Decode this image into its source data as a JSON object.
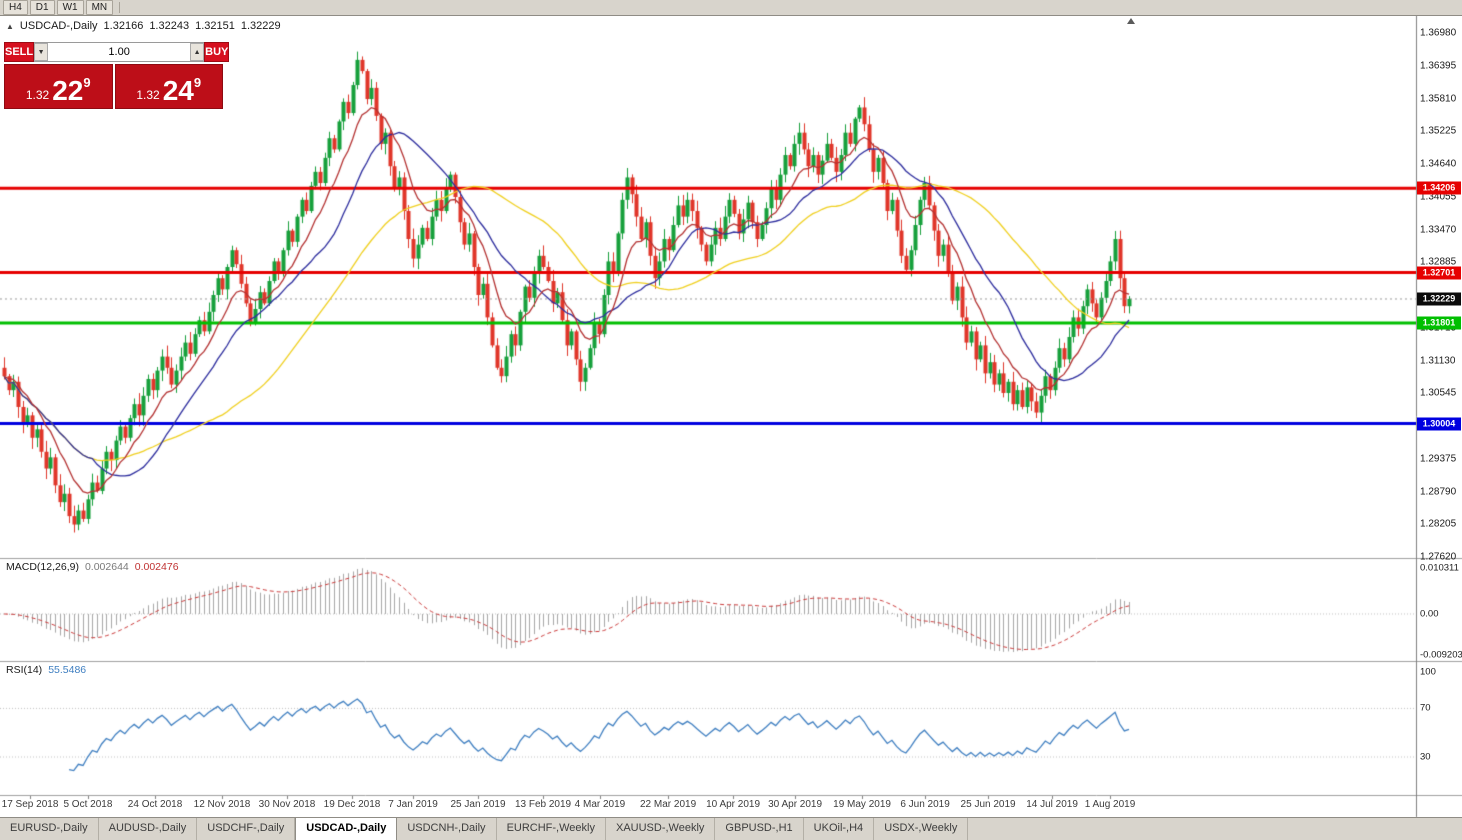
{
  "toolbar": {
    "timeframes": [
      {
        "label": "H4"
      },
      {
        "label": "D1"
      },
      {
        "label": "W1"
      },
      {
        "label": "MN"
      }
    ]
  },
  "chart_header": {
    "symbol": "USDCAD-,Daily",
    "open": "1.32166",
    "high": "1.32243",
    "low": "1.32151",
    "close": "1.32229"
  },
  "trade_panel": {
    "sell_label": "SELL",
    "buy_label": "BUY",
    "volume": "1.00",
    "sell_price": {
      "small": "1.32",
      "big": "22",
      "sup": "9"
    },
    "buy_price": {
      "small": "1.32",
      "big": "24",
      "sup": "9"
    }
  },
  "indicators": {
    "macd": {
      "name": "MACD(12,26,9)",
      "value_main": "0.002644",
      "value_signal": "0.002476",
      "axis": [
        {
          "text": "0.010311",
          "value": 0.010311
        },
        {
          "text": "0.00",
          "value": 0
        },
        {
          "text": "-0.009203",
          "value": -0.009203
        }
      ]
    },
    "rsi": {
      "name": "RSI(14)",
      "value": "55.5486",
      "axis": [
        {
          "text": "100",
          "value": 100
        },
        {
          "text": "70",
          "value": 70
        },
        {
          "text": "30",
          "value": 30
        }
      ],
      "guide_levels": [
        30,
        70
      ]
    }
  },
  "tabs": [
    {
      "label": "EURUSD-,Daily",
      "active": false
    },
    {
      "label": "AUDUSD-,Daily",
      "active": false
    },
    {
      "label": "USDCHF-,Daily",
      "active": false
    },
    {
      "label": "USDCAD-,Daily",
      "active": true
    },
    {
      "label": "USDCNH-,Daily",
      "active": false
    },
    {
      "label": "EURCHF-,Weekly",
      "active": false
    },
    {
      "label": "XAUUSD-,Weekly",
      "active": false
    },
    {
      "label": "GBPUSD-,H1",
      "active": false
    },
    {
      "label": "UKOil-,H4",
      "active": false
    },
    {
      "label": "USDX-,Weekly",
      "active": false
    }
  ],
  "chart_data": {
    "type": "candlestick",
    "title": "USDCAD-,Daily",
    "symbol": "USDCAD",
    "timeframe": "Daily",
    "y_axis": {
      "min": 1.2762,
      "max": 1.3698,
      "ticks": [
        "1.36980",
        "1.36395",
        "1.35810",
        "1.35225",
        "1.34640",
        "1.34055",
        "1.33470",
        "1.32885",
        "1.31715",
        "1.31130",
        "1.30545",
        "1.29375",
        "1.28790",
        "1.28205",
        "1.27620"
      ]
    },
    "x_axis": {
      "labels": [
        {
          "text": "17 Sep 2018",
          "f": 0.0212
        },
        {
          "text": "5 Oct 2018",
          "f": 0.0621
        },
        {
          "text": "24 Oct 2018",
          "f": 0.1095
        },
        {
          "text": "12 Nov 2018",
          "f": 0.1568
        },
        {
          "text": "30 Nov 2018",
          "f": 0.2027
        },
        {
          "text": "19 Dec 2018",
          "f": 0.2486
        },
        {
          "text": "7 Jan 2019",
          "f": 0.2917
        },
        {
          "text": "25 Jan 2019",
          "f": 0.3376
        },
        {
          "text": "13 Feb 2019",
          "f": 0.3835
        },
        {
          "text": "4 Mar 2019",
          "f": 0.4237
        },
        {
          "text": "22 Mar 2019",
          "f": 0.4718
        },
        {
          "text": "10 Apr 2019",
          "f": 0.5177
        },
        {
          "text": "30 Apr 2019",
          "f": 0.5615
        },
        {
          "text": "19 May 2019",
          "f": 0.6088
        },
        {
          "text": "6 Jun 2019",
          "f": 0.6533
        },
        {
          "text": "25 Jun 2019",
          "f": 0.6978
        },
        {
          "text": "14 Jul 2019",
          "f": 0.743
        },
        {
          "text": "1 Aug 2019",
          "f": 0.7839
        }
      ]
    },
    "levels": [
      {
        "price": 1.34206,
        "label": "1.34206",
        "color": "#e60000",
        "width": 3
      },
      {
        "price": 1.32701,
        "label": "1.32701",
        "color": "#e60000",
        "width": 3
      },
      {
        "price": 1.31801,
        "label": "1.31801",
        "color": "#00bf00",
        "width": 3
      },
      {
        "price": 1.30004,
        "label": "1.30004",
        "color": "#0000e0",
        "width": 3
      }
    ],
    "current_price": {
      "price": 1.32229,
      "label": "1.32229",
      "color": "#0a0a0a"
    },
    "colors": {
      "up": "#17a03c",
      "down": "#e0362a",
      "macd_hist": "#a8a8a8",
      "macd_signal": "#cc3b3b",
      "rsi_line": "#3f7fc1"
    },
    "moving_averages": [
      {
        "type": "sma",
        "period": 45,
        "color": "#f0d020"
      },
      {
        "type": "sma",
        "period": 20,
        "color": "#2d2d9e"
      },
      {
        "type": "ema",
        "period": 10,
        "color": "#b43232"
      }
    ],
    "first_open": 1.31,
    "closes": [
      1.3085,
      1.306,
      1.3075,
      1.303,
      1.3,
      1.3015,
      1.2975,
      1.299,
      1.295,
      1.292,
      1.294,
      1.289,
      1.286,
      1.2875,
      1.2835,
      1.282,
      1.2845,
      1.283,
      1.2865,
      1.2895,
      1.288,
      1.292,
      1.295,
      1.2935,
      1.297,
      1.2995,
      1.2975,
      1.301,
      1.3035,
      1.3015,
      1.305,
      1.308,
      1.306,
      1.3095,
      1.312,
      1.31,
      1.307,
      1.3095,
      1.312,
      1.3145,
      1.3125,
      1.316,
      1.3185,
      1.3165,
      1.32,
      1.323,
      1.326,
      1.324,
      1.328,
      1.331,
      1.3285,
      1.325,
      1.3215,
      1.318,
      1.3205,
      1.3235,
      1.3215,
      1.3255,
      1.329,
      1.327,
      1.331,
      1.3345,
      1.3325,
      1.337,
      1.34,
      1.338,
      1.3425,
      1.345,
      1.343,
      1.3475,
      1.351,
      1.349,
      1.354,
      1.3575,
      1.3555,
      1.3605,
      1.365,
      1.363,
      1.358,
      1.36,
      1.355,
      1.35,
      1.352,
      1.346,
      1.342,
      1.344,
      1.338,
      1.333,
      1.3295,
      1.332,
      1.335,
      1.333,
      1.337,
      1.34,
      1.338,
      1.342,
      1.3445,
      1.3405,
      1.336,
      1.332,
      1.334,
      1.328,
      1.323,
      1.325,
      1.319,
      1.314,
      1.31,
      1.3085,
      1.312,
      1.316,
      1.314,
      1.32,
      1.3245,
      1.3225,
      1.327,
      1.33,
      1.328,
      1.3255,
      1.3215,
      1.3235,
      1.3185,
      1.314,
      1.3165,
      1.3115,
      1.3075,
      1.31,
      1.3135,
      1.318,
      1.316,
      1.323,
      1.329,
      1.327,
      1.334,
      1.34,
      1.344,
      1.341,
      1.337,
      1.333,
      1.336,
      1.33,
      1.326,
      1.329,
      1.333,
      1.331,
      1.3355,
      1.339,
      1.337,
      1.34,
      1.338,
      1.335,
      1.332,
      1.329,
      1.332,
      1.335,
      1.333,
      1.337,
      1.34,
      1.3375,
      1.334,
      1.3365,
      1.3395,
      1.336,
      1.333,
      1.3355,
      1.3385,
      1.342,
      1.34,
      1.3445,
      1.348,
      1.346,
      1.35,
      1.352,
      1.349,
      1.346,
      1.348,
      1.3445,
      1.347,
      1.35,
      1.3475,
      1.345,
      1.348,
      1.352,
      1.35,
      1.3545,
      1.3565,
      1.3535,
      1.349,
      1.345,
      1.3475,
      1.343,
      1.338,
      1.34,
      1.3345,
      1.33,
      1.3275,
      1.331,
      1.3355,
      1.34,
      1.343,
      1.339,
      1.3345,
      1.33,
      1.332,
      1.327,
      1.322,
      1.3245,
      1.319,
      1.3145,
      1.3165,
      1.3115,
      1.314,
      1.309,
      1.311,
      1.307,
      1.309,
      1.3055,
      1.3075,
      1.3035,
      1.306,
      1.303,
      1.3065,
      1.304,
      1.302,
      1.305,
      1.3085,
      1.306,
      1.31,
      1.3135,
      1.3115,
      1.3155,
      1.319,
      1.317,
      1.321,
      1.324,
      1.3215,
      1.319,
      1.3225,
      1.3255,
      1.329,
      1.333,
      1.326,
      1.321,
      1.3223
    ]
  }
}
